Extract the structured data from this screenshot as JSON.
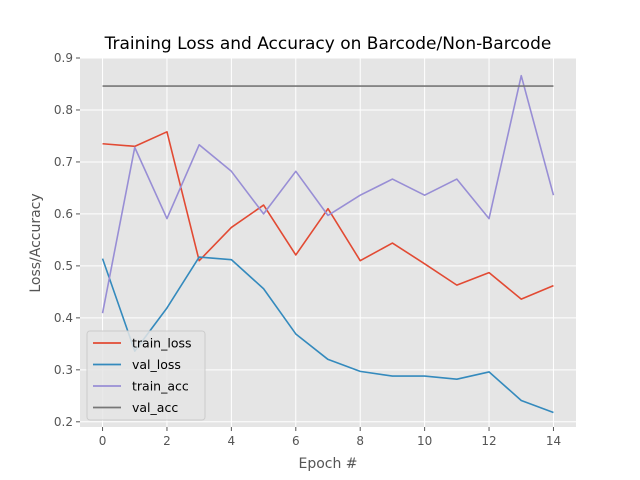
{
  "chart_data": {
    "type": "line",
    "title": "Training Loss and Accuracy on Barcode/Non-Barcode",
    "xlabel": "Epoch #",
    "ylabel": "Loss/Accuracy",
    "x": [
      0,
      1,
      2,
      3,
      4,
      5,
      6,
      7,
      8,
      9,
      10,
      11,
      12,
      13,
      14
    ],
    "xlim": [
      -0.7,
      14.7
    ],
    "ylim": [
      0.19,
      0.9
    ],
    "xticks": [
      "0",
      "2",
      "4",
      "6",
      "8",
      "10",
      "12",
      "14"
    ],
    "yticks": [
      "0.2",
      "0.3",
      "0.4",
      "0.5",
      "0.6",
      "0.7",
      "0.8",
      "0.9"
    ],
    "grid": true,
    "legend_position": "lower-left",
    "series": [
      {
        "name": "train_loss",
        "color": "#E24A33",
        "values": [
          0.735,
          0.73,
          0.758,
          0.51,
          0.574,
          0.617,
          0.521,
          0.61,
          0.51,
          0.544,
          0.504,
          0.463,
          0.487,
          0.436,
          0.462
        ]
      },
      {
        "name": "val_loss",
        "color": "#348ABD",
        "values": [
          0.514,
          0.336,
          0.419,
          0.517,
          0.512,
          0.456,
          0.369,
          0.32,
          0.297,
          0.288,
          0.288,
          0.282,
          0.296,
          0.241,
          0.218
        ]
      },
      {
        "name": "train_acc",
        "color": "#988ED5",
        "values": [
          0.409,
          0.728,
          0.591,
          0.733,
          0.682,
          0.6,
          0.682,
          0.597,
          0.636,
          0.667,
          0.636,
          0.667,
          0.591,
          0.866,
          0.636
        ]
      },
      {
        "name": "val_acc",
        "color": "#777777",
        "values": [
          0.846,
          0.846,
          0.846,
          0.846,
          0.846,
          0.846,
          0.846,
          0.846,
          0.846,
          0.846,
          0.846,
          0.846,
          0.846,
          0.846,
          0.846
        ]
      }
    ]
  }
}
